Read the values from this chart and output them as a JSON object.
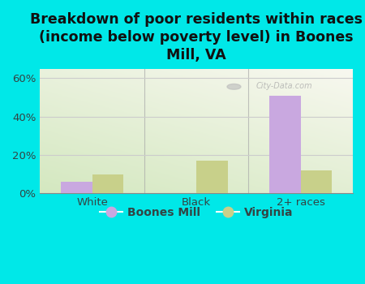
{
  "title": "Breakdown of poor residents within races\n(income below poverty level) in Boones\nMill, VA",
  "categories": [
    "White",
    "Black",
    "2+ races"
  ],
  "boones_mill_values": [
    6.0,
    0.0,
    51.0
  ],
  "virginia_values": [
    10.0,
    17.0,
    12.0
  ],
  "boones_mill_color": "#c9a8e0",
  "virginia_color": "#c8d08a",
  "background_color": "#00e8e8",
  "ylabel_ticks": [
    "0%",
    "20%",
    "40%",
    "60%"
  ],
  "ytick_values": [
    0,
    20,
    40,
    60
  ],
  "ylim": [
    0,
    65
  ],
  "legend_labels": [
    "Boones Mill",
    "Virginia"
  ],
  "title_fontsize": 12.5,
  "tick_fontsize": 9.5,
  "bar_width": 0.3,
  "watermark": "City-Data.com",
  "separator_color": "#aaaaaa",
  "grid_color": "#cccccc"
}
